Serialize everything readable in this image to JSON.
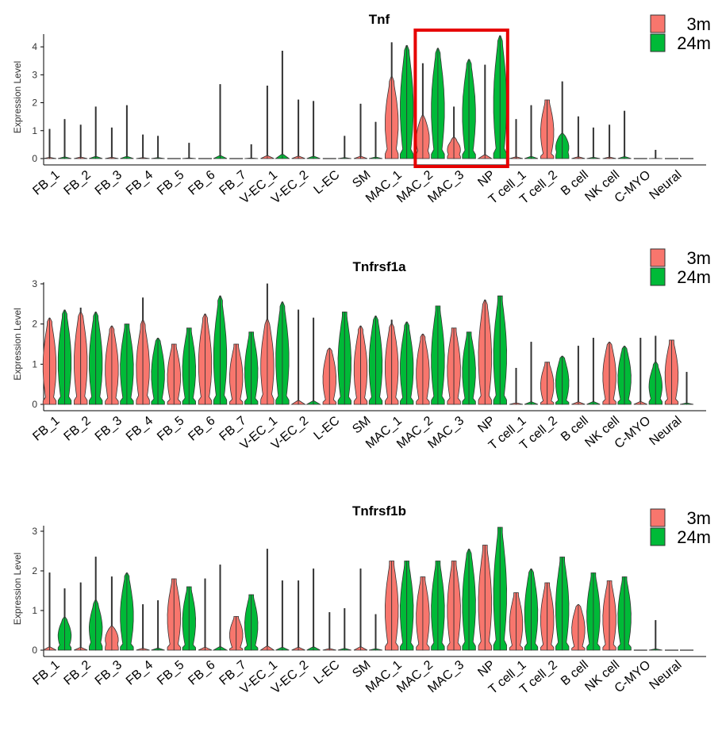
{
  "figure": {
    "colors": {
      "3m": "#F8766D",
      "24m": "#00BA38",
      "highlight": "#E60000"
    }
  },
  "chart_data": [
    {
      "type": "violin",
      "title": "Tnf",
      "ylabel": "Expression Level",
      "ylim": [
        0,
        4.4
      ],
      "yticks": [
        0,
        1,
        2,
        3,
        4
      ],
      "legend": {
        "entries": [
          "3m",
          "24m"
        ],
        "position": "top-right"
      },
      "categories": [
        "FB_1",
        "FB_2",
        "FB_3",
        "FB_4",
        "FB_5",
        "FB_6",
        "FB_7",
        "V-EC_1",
        "V-EC_2",
        "L-EC",
        "SM",
        "MAC_1",
        "MAC_2",
        "MAC_3",
        "NP",
        "T cell_1",
        "T cell_2",
        "B cell",
        "NK cell",
        "C-MYO",
        "Neural"
      ],
      "highlight": [
        "MAC_2",
        "MAC_3",
        "NP"
      ],
      "series": [
        {
          "name": "3m",
          "max": [
            1.05,
            1.2,
            1.1,
            0.85,
            0.0,
            0.0,
            0.0,
            2.6,
            2.1,
            0.0,
            1.95,
            4.15,
            3.4,
            1.85,
            3.35,
            1.4,
            2.1,
            1.5,
            1.2,
            0.0,
            0.0
          ],
          "bulk": [
            0,
            0,
            0,
            0,
            0,
            0,
            0,
            0,
            0,
            0,
            0,
            2.8,
            1.5,
            0.7,
            0,
            0,
            2.1,
            0,
            0,
            0,
            0
          ]
        },
        {
          "name": "24m",
          "max": [
            1.4,
            1.85,
            1.9,
            0.8,
            0.55,
            2.65,
            0.5,
            3.85,
            2.05,
            0.8,
            1.3,
            4.05,
            3.95,
            3.55,
            4.4,
            1.9,
            2.75,
            1.1,
            1.7,
            0.3,
            0.0
          ],
          "bulk": [
            0,
            0,
            0,
            0,
            0,
            0,
            0,
            0,
            0,
            0,
            0,
            4.0,
            3.9,
            3.5,
            4.35,
            0,
            0.9,
            0,
            0,
            0,
            0
          ]
        }
      ]
    },
    {
      "type": "violin",
      "title": "Tnfrsf1a",
      "ylabel": "Expression Level",
      "ylim": [
        0,
        3.0
      ],
      "yticks": [
        0,
        1,
        2,
        3
      ],
      "legend": {
        "entries": [
          "3m",
          "24m"
        ],
        "position": "top-right"
      },
      "categories": [
        "FB_1",
        "FB_2",
        "FB_3",
        "FB_4",
        "FB_5",
        "FB_6",
        "FB_7",
        "V-EC_1",
        "V-EC_2",
        "L-EC",
        "SM",
        "MAC_1",
        "MAC_2",
        "MAC_3",
        "NP",
        "T cell_1",
        "T cell_2",
        "B cell",
        "NK cell",
        "C-MYO",
        "Neural"
      ],
      "series": [
        {
          "name": "3m",
          "max": [
            2.15,
            2.4,
            1.95,
            2.65,
            1.5,
            2.25,
            1.5,
            3.0,
            2.35,
            1.4,
            1.95,
            2.1,
            1.75,
            1.9,
            2.6,
            0.9,
            1.05,
            1.45,
            1.55,
            1.65,
            1.6
          ],
          "bulk": [
            2.1,
            2.3,
            1.9,
            2.0,
            1.5,
            2.2,
            1.5,
            2.1,
            0,
            1.4,
            1.9,
            2.0,
            1.7,
            1.9,
            2.6,
            0,
            1.05,
            0,
            1.55,
            0,
            1.6
          ]
        },
        {
          "name": "24m",
          "max": [
            2.35,
            2.3,
            2.0,
            1.65,
            1.9,
            2.7,
            1.8,
            2.55,
            2.15,
            2.3,
            2.2,
            2.05,
            2.45,
            1.8,
            2.7,
            1.55,
            1.2,
            1.65,
            1.45,
            1.7,
            0.8
          ],
          "bulk": [
            2.3,
            2.25,
            2.0,
            1.65,
            1.9,
            2.6,
            1.8,
            2.5,
            0,
            2.3,
            2.2,
            2.0,
            2.45,
            1.8,
            2.7,
            0,
            1.2,
            0,
            1.45,
            1.0,
            0
          ]
        }
      ]
    },
    {
      "type": "violin",
      "title": "Tnfrsf1b",
      "ylabel": "Expression Level",
      "ylim": [
        0,
        3.1
      ],
      "yticks": [
        0,
        1,
        2,
        3
      ],
      "legend": {
        "entries": [
          "3m",
          "24m"
        ],
        "position": "top-right"
      },
      "categories": [
        "FB_1",
        "FB_2",
        "FB_3",
        "FB_4",
        "FB_5",
        "FB_6",
        "FB_7",
        "V-EC_1",
        "V-EC_2",
        "L-EC",
        "SM",
        "MAC_1",
        "MAC_2",
        "MAC_3",
        "NP",
        "T cell_1",
        "T cell_2",
        "B cell",
        "NK cell",
        "C-MYO",
        "Neural"
      ],
      "series": [
        {
          "name": "3m",
          "max": [
            1.95,
            1.7,
            1.85,
            1.15,
            1.8,
            1.8,
            0.85,
            2.55,
            1.75,
            0.95,
            2.05,
            2.25,
            1.85,
            2.25,
            2.65,
            1.45,
            1.7,
            1.15,
            1.75,
            0.0,
            0.0
          ],
          "bulk": [
            0,
            0,
            0.6,
            0,
            1.8,
            0,
            0.85,
            0,
            0,
            0,
            0,
            2.25,
            1.85,
            2.25,
            2.65,
            1.45,
            1.7,
            1.15,
            1.75,
            0,
            0
          ]
        },
        {
          "name": "24m",
          "max": [
            1.55,
            2.35,
            1.95,
            1.25,
            1.6,
            2.15,
            1.4,
            1.75,
            2.05,
            1.05,
            0.9,
            2.25,
            2.25,
            2.55,
            3.1,
            2.05,
            2.35,
            1.95,
            1.85,
            0.75,
            0.0
          ],
          "bulk": [
            0.8,
            1.2,
            1.9,
            0,
            1.6,
            0,
            1.4,
            0,
            0,
            0,
            0,
            2.25,
            2.25,
            2.55,
            3.1,
            2.05,
            2.35,
            1.95,
            1.85,
            0,
            0
          ]
        }
      ]
    }
  ]
}
